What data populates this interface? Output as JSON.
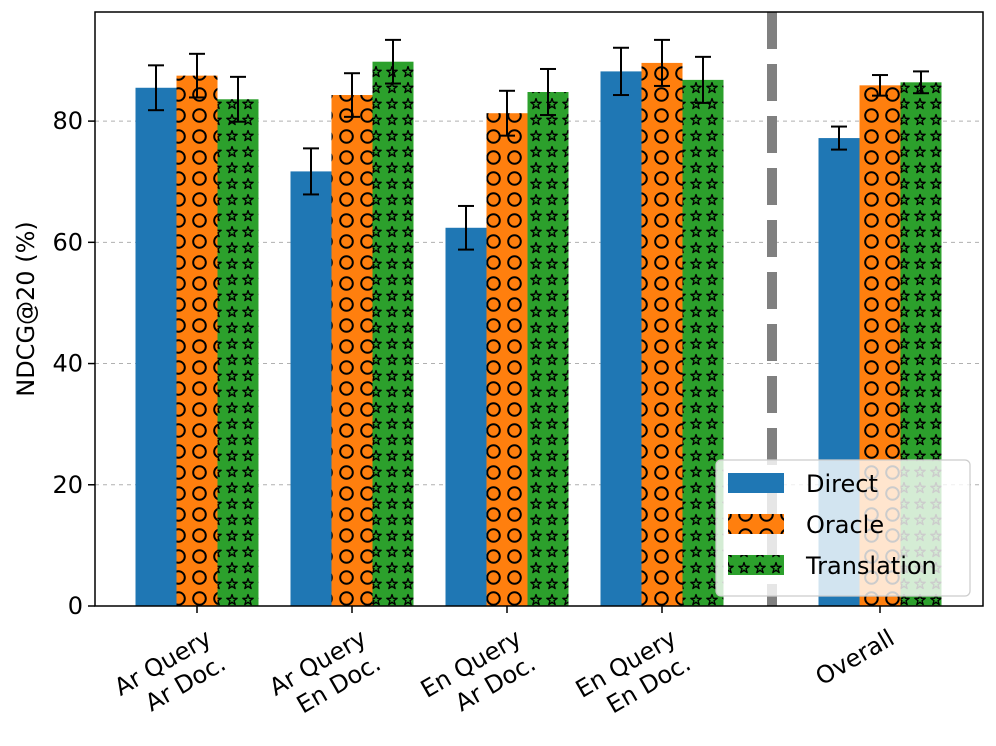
{
  "chart_data": {
    "type": "bar",
    "title": "",
    "xlabel": "",
    "ylabel": "NDCG@20 (%)",
    "ylim": [
      0,
      98
    ],
    "yticks": [
      0,
      20,
      40,
      60,
      80
    ],
    "grid": true,
    "legend_position": "lower-right",
    "categories": [
      [
        "Ar Query",
        "Ar Doc."
      ],
      [
        "Ar Query",
        "En Doc."
      ],
      [
        "En Query",
        "Ar Doc."
      ],
      [
        "En Query",
        "En Doc."
      ],
      [
        "Overall"
      ]
    ],
    "divider_after_category": 3,
    "series": [
      {
        "name": "Direct",
        "color": "#1f77b4",
        "pattern": "none",
        "values": [
          85.5,
          71.7,
          62.4,
          88.2,
          77.2
        ],
        "errors": [
          3.7,
          3.8,
          3.6,
          3.9,
          1.9
        ]
      },
      {
        "name": "Oracle",
        "color": "#ff7f0e",
        "pattern": "circles",
        "values": [
          87.5,
          84.3,
          81.3,
          89.6,
          85.9
        ],
        "errors": [
          3.6,
          3.6,
          3.7,
          3.8,
          1.7
        ]
      },
      {
        "name": "Translation",
        "color": "#2ca02c",
        "pattern": "stars",
        "values": [
          83.6,
          89.8,
          84.8,
          86.8,
          86.4
        ],
        "errors": [
          3.7,
          3.6,
          3.8,
          3.8,
          1.8
        ]
      }
    ]
  }
}
